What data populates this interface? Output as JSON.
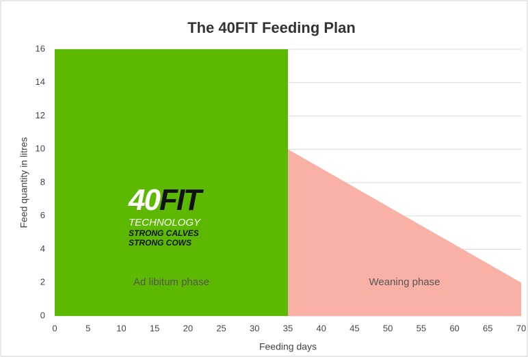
{
  "chart_data": {
    "type": "area",
    "title": "The 40FIT Feeding Plan",
    "xlabel": "Feeding days",
    "ylabel": "Feed quantity in litres",
    "series": [
      {
        "color": "#5cb800",
        "x": [
          0,
          35
        ],
        "values": [
          16,
          16
        ]
      },
      {
        "color": "#f9b0a5",
        "x": [
          35,
          70
        ],
        "values": [
          10,
          2
        ]
      }
    ],
    "xlim": [
      0,
      70
    ],
    "xticks": [
      0,
      5,
      10,
      15,
      20,
      25,
      30,
      35,
      40,
      45,
      50,
      55,
      60,
      65,
      70
    ],
    "ylim": [
      0,
      16
    ],
    "yticks": [
      0,
      2,
      4,
      6,
      8,
      10,
      12,
      14,
      16
    ],
    "grid": true,
    "annotations": [
      {
        "text": "Ad libitum phase",
        "x": 17.5,
        "y": 2
      },
      {
        "text": "Weaning phase",
        "x": 52.5,
        "y": 2
      }
    ],
    "logo": {
      "number": "40",
      "word": "FIT",
      "lines": [
        "TECHNOLOGY",
        "STRONG CALVES",
        "STRONG COWS"
      ]
    }
  }
}
